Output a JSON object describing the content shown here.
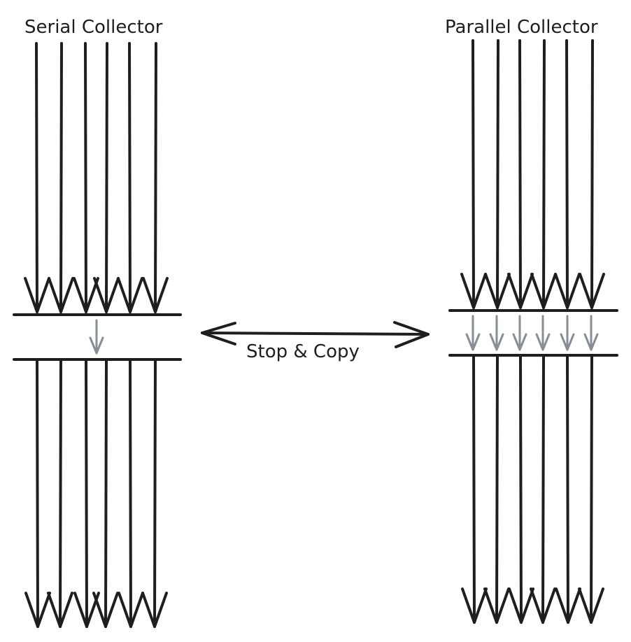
{
  "diagram": {
    "serial_title": "Serial Collector",
    "parallel_title": "Parallel Collector",
    "comparison_label": "Stop & Copy",
    "serial": {
      "application_threads": 6,
      "gc_threads": 1
    },
    "parallel": {
      "application_threads": 6,
      "gc_threads": 6
    },
    "colors": {
      "thread": "#1e1e1e",
      "gc_thread": "#868e96",
      "background": "#ffffff"
    }
  }
}
